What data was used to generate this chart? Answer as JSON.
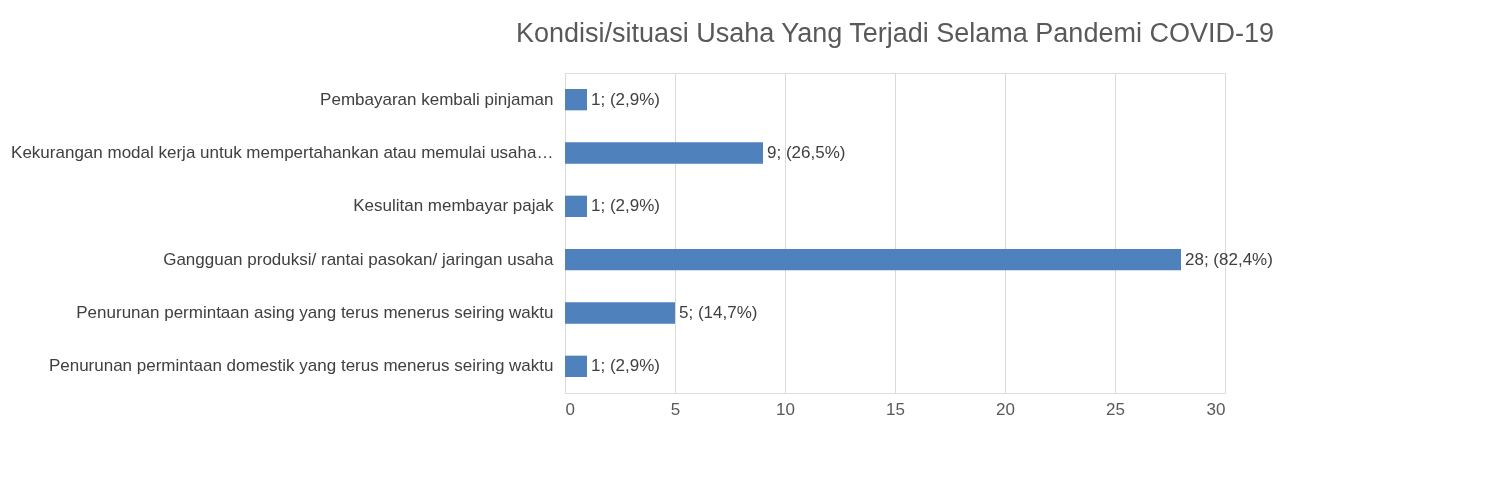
{
  "chart_data": {
    "type": "bar",
    "orientation": "horizontal",
    "title": "Kondisi/situasi Usaha Yang Terjadi Selama Pandemi COVID-19",
    "categories": [
      "Pembayaran kembali pinjaman",
      "Kekurangan modal kerja untuk mempertahankan atau memulai usaha…",
      "Kesulitan membayar pajak",
      "Gangguan produksi/ rantai pasokan/ jaringan usaha",
      "Penurunan permintaan asing yang terus menerus seiring waktu",
      "Penurunan permintaan domestik yang terus menerus seiring waktu"
    ],
    "values": [
      1,
      9,
      1,
      28,
      5,
      1
    ],
    "value_labels": [
      "1; (2,9%)",
      "9; (26,5%)",
      "1; (2,9%)",
      "28; (82,4%)",
      "5; (14,7%)",
      "1; (2,9%)"
    ],
    "color": "#4f81bd",
    "xlim": [
      0,
      30
    ],
    "xticks": [
      0,
      5,
      10,
      15,
      20,
      25,
      30
    ],
    "grid": "x"
  }
}
